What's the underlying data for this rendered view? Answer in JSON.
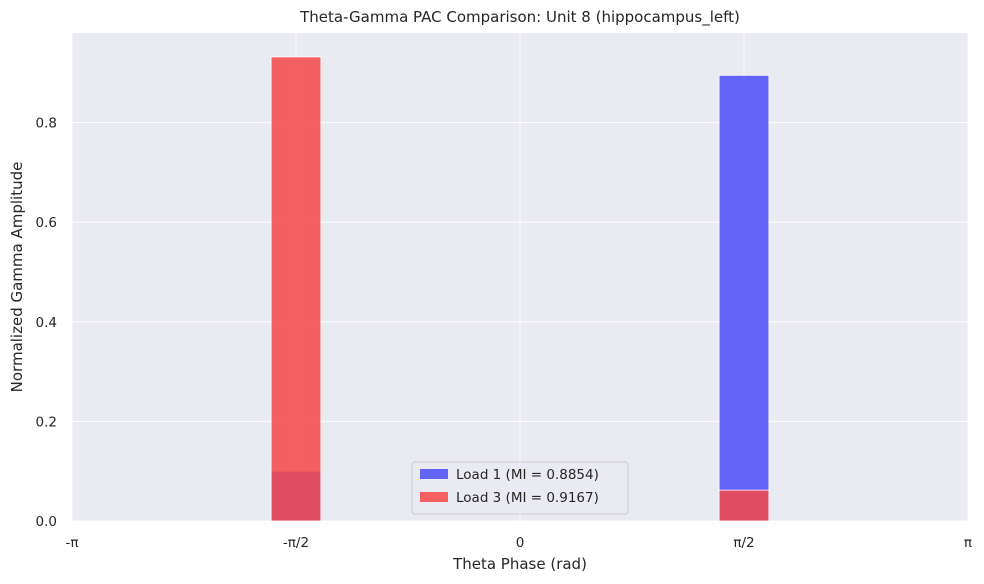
{
  "chart_data": {
    "type": "bar",
    "title": "Theta-Gamma PAC Comparison: Unit 8 (hippocampus_left)",
    "xlabel": "Theta Phase (rad)",
    "ylabel": "Normalized Gamma Amplitude",
    "xlim": [
      -3.14159,
      3.14159
    ],
    "ylim": [
      0,
      0.98
    ],
    "x_tick_labels": [
      "-π",
      "-π/2",
      "0",
      "π/2",
      "π"
    ],
    "y_ticks": [
      "0.0",
      "0.2",
      "0.4",
      "0.6",
      "0.8"
    ],
    "y_tick_values": [
      0,
      0.2,
      0.4,
      0.6,
      0.8
    ],
    "grid": true,
    "legend_position": "bottom-center",
    "bar_width_rad": 0.3491,
    "series": [
      {
        "name": "Load 1 (MI = 0.8854)",
        "color": "#4b4bf7",
        "bars": [
          {
            "x": -1.5708,
            "value": 0.1
          },
          {
            "x": 1.5708,
            "value": 0.895
          }
        ]
      },
      {
        "name": "Load 3 (MI = 0.9167)",
        "color": "#f64848",
        "bars": [
          {
            "x": -1.5708,
            "value": 0.932
          },
          {
            "x": 1.5708,
            "value": 0.062
          }
        ]
      }
    ]
  }
}
